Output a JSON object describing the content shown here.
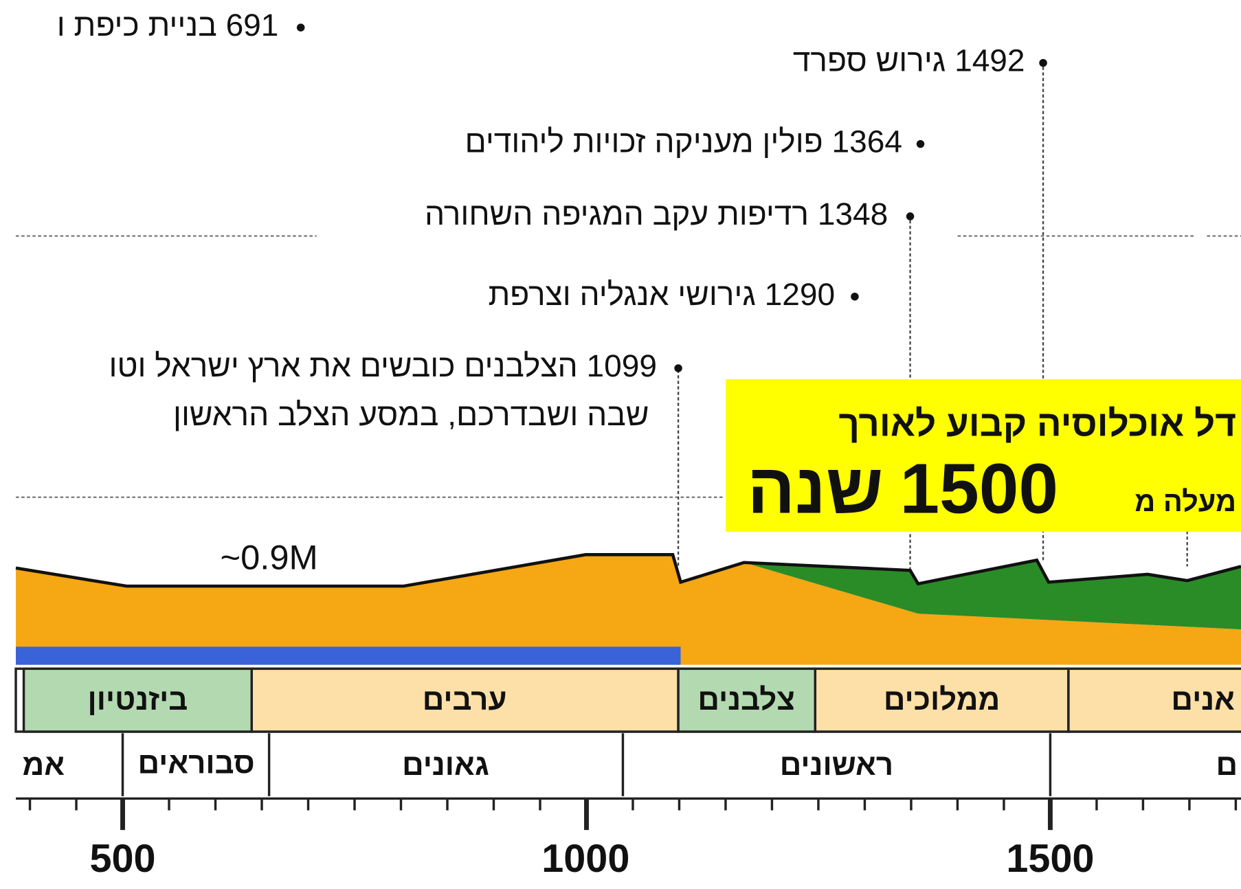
{
  "events": [
    {
      "text": "691 בניית כיפת ו"
    },
    {
      "text": "1492 גירוש ספרד"
    },
    {
      "text": "1364 פולין מעניקה זכויות ליהודים"
    },
    {
      "text": "1348 רדיפות עקב המגיפה השחורה"
    },
    {
      "text": "1290 גירושי אנגליה וצרפת"
    },
    {
      "text": "1099 הצלבנים כובשים את ארץ ישראל וטו",
      "text2": "שבה ושבדרכם, במסע הצלב הראשון"
    }
  ],
  "population_label": "~0.9M",
  "callout": {
    "line1": "דל אוכלוסיה קבוע לאורך",
    "prefix": "מעלה מ",
    "number": "1500",
    "suffix": "שנה"
  },
  "rulers": [
    "ביזנטיון",
    "ערבים",
    "צלבנים",
    "ממלוכים",
    "אנים"
  ],
  "eras": [
    "אמ",
    "סבוראים",
    "גאונים",
    "ראשונים",
    "ם"
  ],
  "axis_labels": [
    "500",
    "1000",
    "1500"
  ]
}
